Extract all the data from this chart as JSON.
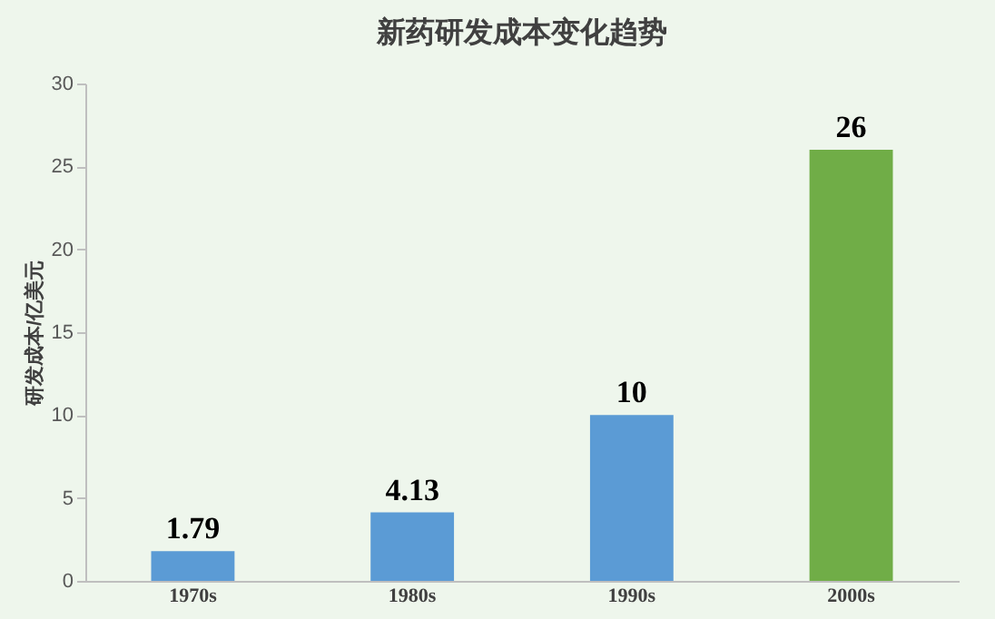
{
  "chart_data": {
    "type": "bar",
    "title": "新药研发成本变化趋势",
    "ylabel": "研发成本/亿美元",
    "categories": [
      "1970s",
      "1980s",
      "1990s",
      "2000s"
    ],
    "values": [
      1.79,
      4.13,
      10,
      26
    ],
    "colors": [
      "#5b9bd5",
      "#5b9bd5",
      "#5b9bd5",
      "#70ad47"
    ],
    "ylim": [
      0,
      30
    ],
    "yticks": [
      0,
      5,
      10,
      15,
      20,
      25,
      30
    ],
    "data_labels": true,
    "grid": false
  }
}
